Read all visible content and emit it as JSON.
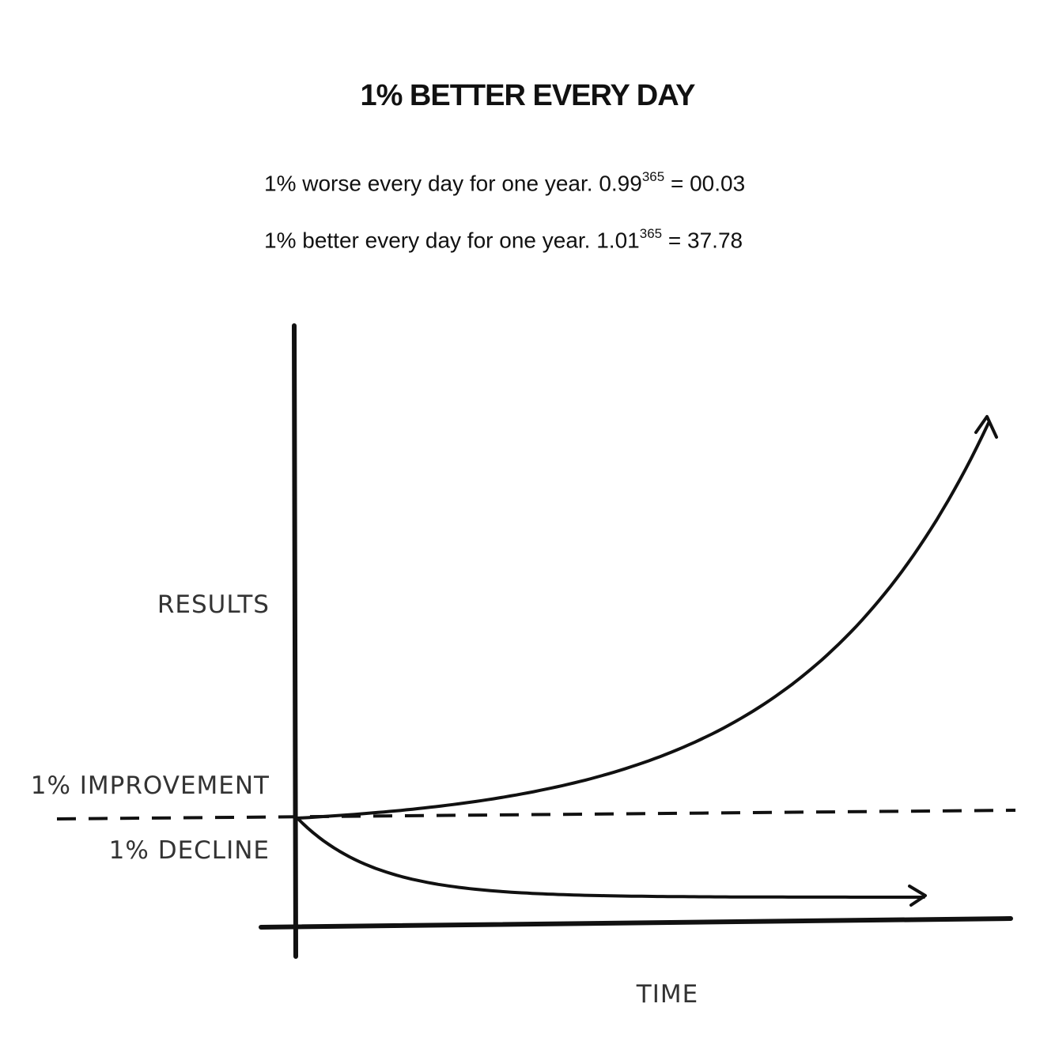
{
  "title": "1% BETTER EVERY DAY",
  "formulas": [
    {
      "text": "1% worse every day for one year. 0.99",
      "exponent": "365",
      "result": " = 00.03"
    },
    {
      "text": "1% better every day for one year. 1.01",
      "exponent": "365",
      "result": " = 37.78"
    }
  ],
  "chart_data": {
    "type": "line",
    "title": "1% BETTER EVERY DAY",
    "xlabel": "TIME",
    "ylabel": "RESULTS",
    "baseline_label_above": "1% IMPROVEMENT",
    "baseline_label_below": "1% DECLINE",
    "x_range": [
      0,
      365
    ],
    "baseline": 1,
    "series": [
      {
        "name": "1% better every day",
        "base": 1.01,
        "days": 365,
        "final_value": 37.78
      },
      {
        "name": "1% worse every day",
        "base": 0.99,
        "days": 365,
        "final_value": 0.03
      }
    ],
    "grid": false,
    "line_color": "#1a1a1a"
  }
}
